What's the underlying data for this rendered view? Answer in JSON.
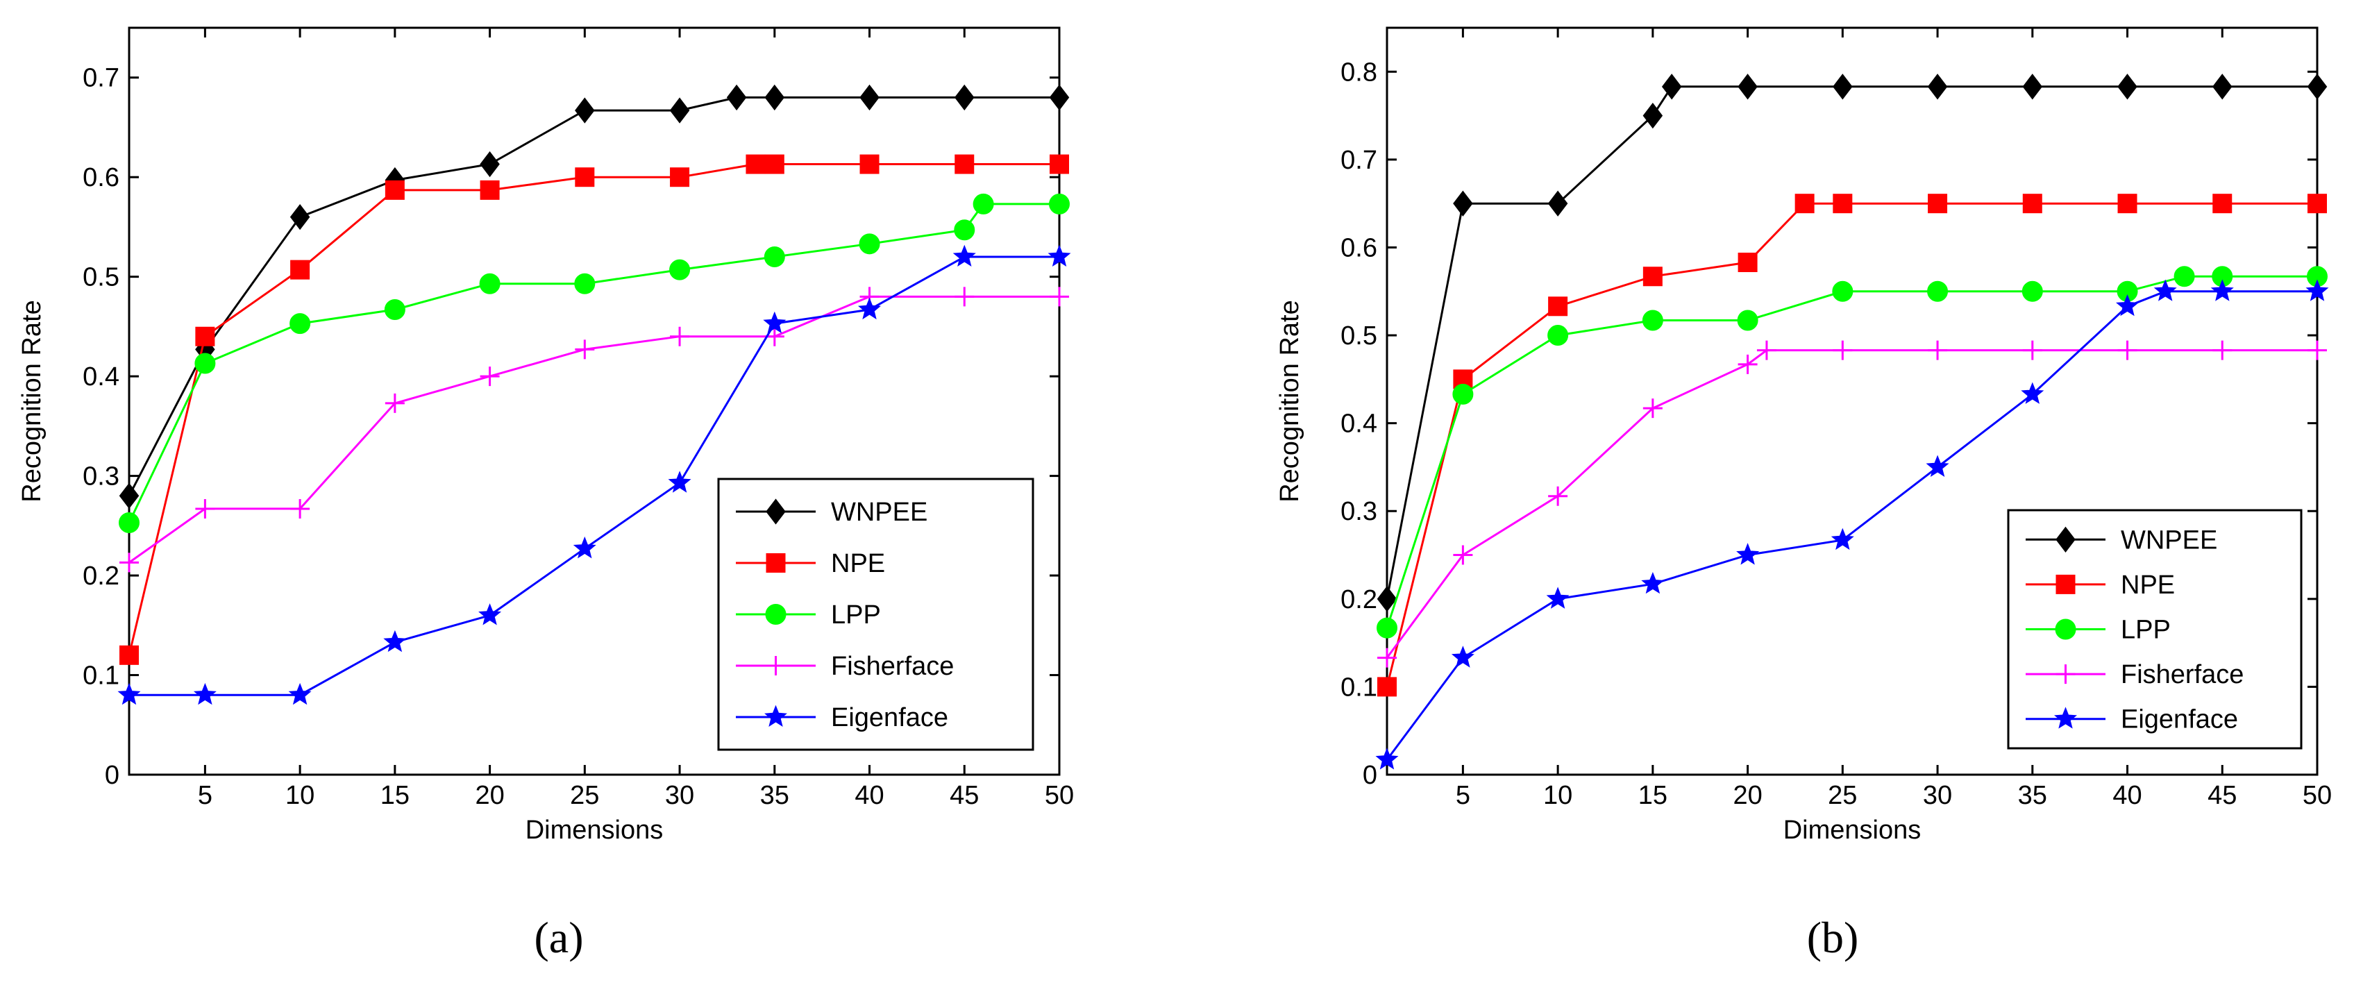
{
  "chart_data": [
    {
      "type": "line",
      "panel_label": "(a)",
      "xlabel": "Dimensions",
      "ylabel": "Recognition Rate",
      "xlim": [
        1,
        50
      ],
      "ylim": [
        0,
        0.75
      ],
      "xticks": [
        5,
        10,
        15,
        20,
        25,
        30,
        35,
        40,
        45,
        50
      ],
      "yticks": [
        0,
        0.1,
        0.2,
        0.3,
        0.4,
        0.5,
        0.6,
        0.7
      ],
      "ytick_labels": [
        "0",
        "0.1",
        "0.2",
        "0.3",
        "0.4",
        "0.5",
        "0.6",
        "0.7"
      ],
      "legend_position": "bottom-right",
      "grid": false,
      "series": [
        {
          "name": "WNPEE",
          "color": "#000000",
          "marker": "diamond",
          "x": [
            1,
            5,
            10,
            15,
            20,
            25,
            30,
            33,
            35,
            40,
            45,
            50
          ],
          "y": [
            0.28,
            0.427,
            0.56,
            0.597,
            0.613,
            0.667,
            0.667,
            0.68,
            0.68,
            0.68,
            0.68,
            0.68
          ]
        },
        {
          "name": "NPE",
          "color": "#ff0000",
          "marker": "square",
          "x": [
            1,
            5,
            10,
            15,
            20,
            25,
            30,
            34,
            35,
            40,
            45,
            50
          ],
          "y": [
            0.12,
            0.44,
            0.507,
            0.587,
            0.587,
            0.6,
            0.6,
            0.613,
            0.613,
            0.613,
            0.613,
            0.613
          ]
        },
        {
          "name": "LPP",
          "color": "#00ff00",
          "marker": "circle",
          "x": [
            1,
            5,
            10,
            15,
            20,
            25,
            30,
            35,
            40,
            45,
            46,
            50
          ],
          "y": [
            0.253,
            0.413,
            0.453,
            0.467,
            0.493,
            0.493,
            0.507,
            0.52,
            0.533,
            0.547,
            0.573,
            0.573
          ]
        },
        {
          "name": "Fisherface",
          "color": "#ff00ff",
          "marker": "plus",
          "x": [
            1,
            5,
            10,
            15,
            20,
            25,
            30,
            35,
            40,
            45,
            50
          ],
          "y": [
            0.213,
            0.267,
            0.267,
            0.373,
            0.4,
            0.427,
            0.44,
            0.44,
            0.48,
            0.48,
            0.48
          ]
        },
        {
          "name": "Eigenface",
          "color": "#0000ff",
          "marker": "star",
          "x": [
            1,
            5,
            10,
            15,
            20,
            25,
            30,
            35,
            40,
            45,
            50
          ],
          "y": [
            0.08,
            0.08,
            0.08,
            0.133,
            0.16,
            0.227,
            0.293,
            0.453,
            0.467,
            0.52,
            0.52
          ]
        }
      ]
    },
    {
      "type": "line",
      "panel_label": "(b)",
      "xlabel": "Dimensions",
      "ylabel": "Recognition Rate",
      "xlim": [
        1,
        50
      ],
      "ylim": [
        0,
        0.85
      ],
      "xticks": [
        5,
        10,
        15,
        20,
        25,
        30,
        35,
        40,
        45,
        50
      ],
      "yticks": [
        0,
        0.1,
        0.2,
        0.3,
        0.4,
        0.5,
        0.6,
        0.7,
        0.8
      ],
      "ytick_labels": [
        "0",
        "0.1",
        "0.2",
        "0.3",
        "0.4",
        "0.5",
        "0.6",
        "0.7",
        "0.8"
      ],
      "legend_position": "bottom-right",
      "grid": false,
      "series": [
        {
          "name": "WNPEE",
          "color": "#000000",
          "marker": "diamond",
          "x": [
            1,
            5,
            10,
            15,
            16,
            20,
            25,
            30,
            35,
            40,
            45,
            50
          ],
          "y": [
            0.2,
            0.65,
            0.65,
            0.75,
            0.783,
            0.783,
            0.783,
            0.783,
            0.783,
            0.783,
            0.783,
            0.783
          ]
        },
        {
          "name": "NPE",
          "color": "#ff0000",
          "marker": "square",
          "x": [
            1,
            5,
            10,
            15,
            20,
            23,
            25,
            30,
            35,
            40,
            45,
            50
          ],
          "y": [
            0.1,
            0.45,
            0.533,
            0.567,
            0.583,
            0.65,
            0.65,
            0.65,
            0.65,
            0.65,
            0.65,
            0.65
          ]
        },
        {
          "name": "LPP",
          "color": "#00ff00",
          "marker": "circle",
          "x": [
            1,
            5,
            10,
            15,
            20,
            25,
            30,
            35,
            40,
            43,
            45,
            50
          ],
          "y": [
            0.167,
            0.433,
            0.5,
            0.517,
            0.517,
            0.55,
            0.55,
            0.55,
            0.55,
            0.567,
            0.567,
            0.567
          ]
        },
        {
          "name": "Fisherface",
          "color": "#ff00ff",
          "marker": "plus",
          "x": [
            1,
            5,
            10,
            15,
            20,
            21,
            25,
            30,
            35,
            40,
            45,
            50
          ],
          "y": [
            0.133,
            0.25,
            0.317,
            0.417,
            0.467,
            0.483,
            0.483,
            0.483,
            0.483,
            0.483,
            0.483,
            0.483
          ]
        },
        {
          "name": "Eigenface",
          "color": "#0000ff",
          "marker": "star",
          "x": [
            1,
            5,
            10,
            15,
            20,
            25,
            30,
            35,
            40,
            42,
            45,
            50
          ],
          "y": [
            0.017,
            0.133,
            0.2,
            0.217,
            0.25,
            0.267,
            0.35,
            0.433,
            0.533,
            0.55,
            0.55,
            0.55
          ]
        }
      ]
    }
  ]
}
